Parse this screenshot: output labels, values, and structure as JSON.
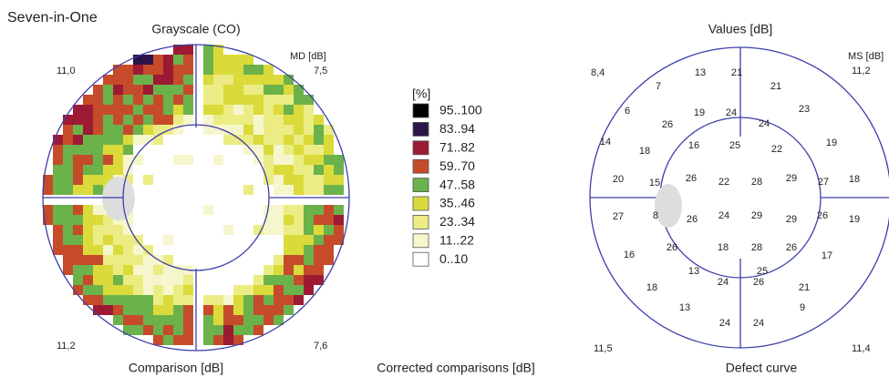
{
  "header": {
    "title": "Seven-in-One"
  },
  "grayscale": {
    "title": "Grayscale (CO)",
    "md_label": "MD [dB]",
    "corners": [
      "7,5",
      "11,0",
      "11,2",
      "7,6"
    ]
  },
  "legend": {
    "unit": "[%]",
    "items": [
      {
        "label": "95..100",
        "color": "#000000"
      },
      {
        "label": "83..94",
        "color": "#2b1447"
      },
      {
        "label": "71..82",
        "color": "#9c1a33"
      },
      {
        "label": "59..70",
        "color": "#c64b2b"
      },
      {
        "label": "47..58",
        "color": "#6cb24a"
      },
      {
        "label": "35..46",
        "color": "#dada3a"
      },
      {
        "label": "23..34",
        "color": "#ecec84"
      },
      {
        "label": "11..22",
        "color": "#f6f6cc"
      },
      {
        "label": "0..10",
        "color": "#ffffff"
      }
    ]
  },
  "values": {
    "title": "Values [dB]",
    "ms_label": "MS [dB]",
    "corners": [
      "11,2",
      "8,4",
      "11,5",
      "11,4"
    ],
    "points": [
      7,
      13,
      21,
      21,
      6,
      19,
      24,
      24,
      23,
      26,
      14,
      18,
      16,
      25,
      22,
      19,
      20,
      15,
      26,
      22,
      28,
      29,
      27,
      18,
      27,
      8,
      26,
      24,
      29,
      29,
      26,
      19,
      16,
      26,
      18,
      28,
      26,
      17,
      13,
      25,
      18,
      24,
      26,
      21,
      13,
      9,
      24,
      24
    ]
  },
  "footer": {
    "comparison": "Comparison [dB]",
    "corrected": "Corrected comparisons [dB]",
    "defect": "Defect curve"
  }
}
